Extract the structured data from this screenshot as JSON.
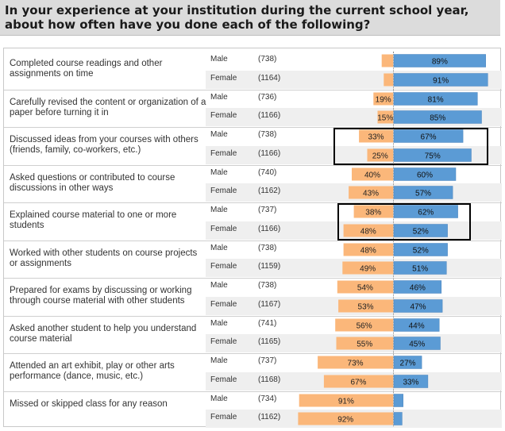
{
  "title": "In your experience at your institution during the current school year, about how often have you done each of the following?",
  "colors": {
    "often": "#5b9bd5",
    "rarely": "#fbb77a",
    "bar_border": "#9a9a9a"
  },
  "chart_data": {
    "type": "bar",
    "orientation": "horizontal-diverging",
    "value_unit": "%",
    "categories": [
      "Completed course readings and other assignments on time",
      "Carefully revised the content or organization of a paper before turning it in",
      "Discussed ideas from your courses with others (friends, family, co-workers, etc.)",
      "Asked questions or contributed to course discussions in other ways",
      "Explained course material to one or more students",
      "Worked with other students on course projects or assignments",
      "Prepared for exams by discussing or working through course material with other students",
      "Asked another student to help you understand course material",
      "Attended an art exhibit, play or other arts performance (dance, music, etc.)",
      "Missed or skipped class for any reason"
    ],
    "rows": [
      {
        "item": 0,
        "sex": "Male",
        "n": "(738)",
        "left": 11,
        "right": 89,
        "left_label": "",
        "right_label": "89%"
      },
      {
        "item": 0,
        "sex": "Female",
        "n": "(1164)",
        "left": 9,
        "right": 91,
        "left_label": "",
        "right_label": "91%"
      },
      {
        "item": 1,
        "sex": "Male",
        "n": "(736)",
        "left": 19,
        "right": 81,
        "left_label": "19%",
        "right_label": "81%"
      },
      {
        "item": 1,
        "sex": "Female",
        "n": "(1166)",
        "left": 15,
        "right": 85,
        "left_label": "15%",
        "right_label": "85%"
      },
      {
        "item": 2,
        "sex": "Male",
        "n": "(738)",
        "left": 33,
        "right": 67,
        "left_label": "33%",
        "right_label": "67%"
      },
      {
        "item": 2,
        "sex": "Female",
        "n": "(1166)",
        "left": 25,
        "right": 75,
        "left_label": "25%",
        "right_label": "75%"
      },
      {
        "item": 3,
        "sex": "Male",
        "n": "(740)",
        "left": 40,
        "right": 60,
        "left_label": "40%",
        "right_label": "60%"
      },
      {
        "item": 3,
        "sex": "Female",
        "n": "(1162)",
        "left": 43,
        "right": 57,
        "left_label": "43%",
        "right_label": "57%"
      },
      {
        "item": 4,
        "sex": "Male",
        "n": "(737)",
        "left": 38,
        "right": 62,
        "left_label": "38%",
        "right_label": "62%"
      },
      {
        "item": 4,
        "sex": "Female",
        "n": "(1166)",
        "left": 48,
        "right": 52,
        "left_label": "48%",
        "right_label": "52%"
      },
      {
        "item": 5,
        "sex": "Male",
        "n": "(738)",
        "left": 48,
        "right": 52,
        "left_label": "48%",
        "right_label": "52%"
      },
      {
        "item": 5,
        "sex": "Female",
        "n": "(1159)",
        "left": 49,
        "right": 51,
        "left_label": "49%",
        "right_label": "51%"
      },
      {
        "item": 6,
        "sex": "Male",
        "n": "(738)",
        "left": 54,
        "right": 46,
        "left_label": "54%",
        "right_label": "46%"
      },
      {
        "item": 6,
        "sex": "Female",
        "n": "(1167)",
        "left": 53,
        "right": 47,
        "left_label": "53%",
        "right_label": "47%"
      },
      {
        "item": 7,
        "sex": "Male",
        "n": "(741)",
        "left": 56,
        "right": 44,
        "left_label": "56%",
        "right_label": "44%"
      },
      {
        "item": 7,
        "sex": "Female",
        "n": "(1165)",
        "left": 55,
        "right": 45,
        "left_label": "55%",
        "right_label": "45%"
      },
      {
        "item": 8,
        "sex": "Male",
        "n": "(737)",
        "left": 73,
        "right": 27,
        "left_label": "73%",
        "right_label": "27%"
      },
      {
        "item": 8,
        "sex": "Female",
        "n": "(1168)",
        "left": 67,
        "right": 33,
        "left_label": "67%",
        "right_label": "33%"
      },
      {
        "item": 9,
        "sex": "Male",
        "n": "(734)",
        "left": 91,
        "right": 9,
        "left_label": "91%",
        "right_label": ""
      },
      {
        "item": 9,
        "sex": "Female",
        "n": "(1162)",
        "left": 92,
        "right": 8,
        "left_label": "92%",
        "right_label": ""
      }
    ],
    "highlighted_items": [
      2,
      4
    ],
    "legend": "none",
    "grid": false
  }
}
